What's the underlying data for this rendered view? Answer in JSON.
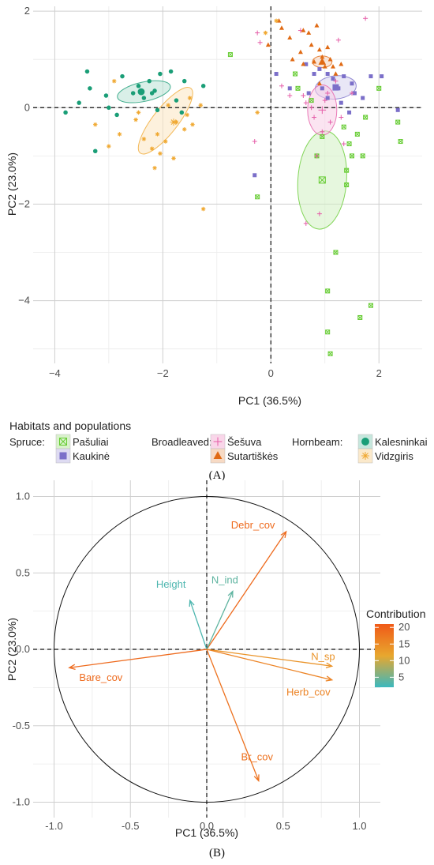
{
  "panel_labels": {
    "a": "(A)",
    "b": "(B)"
  },
  "chart_data": [
    {
      "type": "scatter",
      "xlabel": "PC1 (36.5%)",
      "ylabel": "PC2 (23.0%)",
      "xlim": [
        -4.4,
        2.8
      ],
      "ylim": [
        -5.3,
        2.1
      ],
      "x_ticks": [
        -4,
        -2,
        0,
        2
      ],
      "y_ticks": [
        2,
        0,
        -2,
        -4
      ],
      "grid": true,
      "reference_lines": {
        "x": 0,
        "y": 0,
        "style": "dashed"
      },
      "legend": {
        "title": "Habitats and populations",
        "position": "bottom",
        "groups": [
          {
            "label": "Spruce:",
            "entries": [
              "Pašuliai",
              "Kaukinė"
            ]
          },
          {
            "label": "Broadleaved:",
            "entries": [
              "Šešuva",
              "Sutartiškės"
            ]
          },
          {
            "label": "Hornbeam:",
            "entries": [
              "Kalesninkai",
              "Vidzgiris"
            ]
          }
        ]
      },
      "series": [
        {
          "name": "Pašuliai",
          "color": "#66cc33",
          "marker": "boxed-x",
          "points": [
            [
              -0.75,
              1.1
            ],
            [
              -0.25,
              -1.85
            ],
            [
              0.45,
              0.7
            ],
            [
              0.5,
              0.4
            ],
            [
              0.75,
              0.15
            ],
            [
              0.85,
              -1.0
            ],
            [
              0.95,
              -0.6
            ],
            [
              1.05,
              -3.8
            ],
            [
              1.05,
              -4.65
            ],
            [
              1.1,
              -5.1
            ],
            [
              1.2,
              -3.0
            ],
            [
              1.35,
              -0.4
            ],
            [
              1.45,
              -0.75
            ],
            [
              1.5,
              -1.0
            ],
            [
              1.4,
              -1.3
            ],
            [
              1.4,
              -1.6
            ],
            [
              1.65,
              -4.35
            ],
            [
              1.7,
              -1.0
            ],
            [
              1.75,
              -0.2
            ],
            [
              1.85,
              -4.1
            ],
            [
              2.35,
              -0.3
            ],
            [
              2.4,
              -0.7
            ],
            [
              2.0,
              0.4
            ],
            [
              1.6,
              -0.55
            ]
          ],
          "centroid": [
            0.95,
            -1.5
          ],
          "ellipse": {
            "cx": 0.95,
            "cy": -1.5,
            "rx": 0.45,
            "ry": 1.02,
            "angle": 4
          }
        },
        {
          "name": "Kaukinė",
          "color": "#7b6fc9",
          "marker": "square",
          "points": [
            [
              -0.3,
              -1.4
            ],
            [
              0.1,
              0.7
            ],
            [
              0.35,
              0.4
            ],
            [
              0.65,
              0.9
            ],
            [
              0.8,
              0.7
            ],
            [
              0.9,
              0.8
            ],
            [
              0.95,
              0.4
            ],
            [
              1.05,
              0.7
            ],
            [
              1.15,
              0.6
            ],
            [
              1.25,
              0.4
            ],
            [
              1.35,
              0.65
            ],
            [
              1.5,
              0.5
            ],
            [
              1.55,
              0.3
            ],
            [
              1.7,
              0.2
            ],
            [
              1.85,
              0.65
            ],
            [
              2.05,
              0.65
            ],
            [
              2.35,
              -0.05
            ],
            [
              1.3,
              0.1
            ],
            [
              1.05,
              0.2
            ],
            [
              0.7,
              0.3
            ],
            [
              1.45,
              -0.1
            ]
          ],
          "centroid": [
            1.2,
            0.42
          ],
          "ellipse": {
            "cx": 1.2,
            "cy": 0.42,
            "rx": 0.38,
            "ry": 0.24,
            "angle": -6
          }
        },
        {
          "name": "Šešuva",
          "color": "#e55ca8",
          "marker": "plus",
          "points": [
            [
              -0.25,
              1.55
            ],
            [
              -0.2,
              1.35
            ],
            [
              -0.3,
              -0.7
            ],
            [
              0.2,
              0.45
            ],
            [
              0.35,
              0.25
            ],
            [
              0.6,
              0.25
            ],
            [
              0.65,
              0.1
            ],
            [
              0.75,
              0.0
            ],
            [
              0.8,
              -0.2
            ],
            [
              0.85,
              -1.0
            ],
            [
              0.9,
              -2.2
            ],
            [
              0.65,
              -2.4
            ],
            [
              0.95,
              -0.5
            ],
            [
              1.0,
              0.15
            ],
            [
              1.05,
              0.3
            ],
            [
              1.1,
              -0.3
            ],
            [
              1.2,
              0.55
            ],
            [
              1.25,
              1.4
            ],
            [
              1.35,
              -0.75
            ],
            [
              1.5,
              0.3
            ],
            [
              1.75,
              1.85
            ],
            [
              0.55,
              1.6
            ],
            [
              1.3,
              -0.2
            ]
          ],
          "centroid": [
            0.95,
            -0.05
          ],
          "ellipse": {
            "cx": 0.95,
            "cy": -0.05,
            "rx": 0.27,
            "ry": 0.52,
            "angle": 0
          }
        },
        {
          "name": "Sutartiškės",
          "color": "#e06a14",
          "marker": "triangle",
          "points": [
            [
              -0.05,
              1.3
            ],
            [
              0.15,
              1.8
            ],
            [
              0.2,
              1.65
            ],
            [
              0.35,
              1.45
            ],
            [
              0.55,
              1.15
            ],
            [
              0.6,
              1.6
            ],
            [
              0.7,
              1.55
            ],
            [
              0.75,
              1.3
            ],
            [
              0.85,
              1.7
            ],
            [
              0.9,
              1.2
            ],
            [
              0.95,
              1.05
            ],
            [
              1.05,
              1.25
            ],
            [
              1.1,
              1.0
            ],
            [
              1.15,
              0.85
            ],
            [
              1.2,
              0.7
            ],
            [
              1.3,
              0.9
            ],
            [
              0.9,
              0.5
            ],
            [
              0.8,
              0.95
            ],
            [
              0.6,
              0.9
            ],
            [
              0.4,
              1.0
            ],
            [
              1.0,
              0.85
            ]
          ],
          "centroid": [
            0.95,
            0.95
          ],
          "ellipse": {
            "cx": 0.95,
            "cy": 0.95,
            "rx": 0.18,
            "ry": 0.12,
            "angle": 0
          }
        },
        {
          "name": "Kalesninkai",
          "color": "#1a9e77",
          "marker": "circle",
          "points": [
            [
              -3.8,
              -0.1
            ],
            [
              -3.55,
              0.1
            ],
            [
              -3.4,
              0.75
            ],
            [
              -3.35,
              0.4
            ],
            [
              -3.25,
              -0.9
            ],
            [
              -3.05,
              0.25
            ],
            [
              -2.85,
              -0.15
            ],
            [
              -2.75,
              0.65
            ],
            [
              -2.55,
              0.3
            ],
            [
              -2.45,
              0.45
            ],
            [
              -2.35,
              0.2
            ],
            [
              -2.25,
              0.55
            ],
            [
              -2.15,
              0.35
            ],
            [
              -2.1,
              -0.05
            ],
            [
              -2.05,
              0.7
            ],
            [
              -1.85,
              0.75
            ],
            [
              -1.6,
              0.55
            ],
            [
              -1.65,
              -0.1
            ],
            [
              -1.25,
              0.45
            ],
            [
              -1.75,
              0.15
            ],
            [
              -2.2,
              0.3
            ],
            [
              -3.0,
              0.0
            ]
          ],
          "centroid": [
            -2.4,
            0.33
          ],
          "ellipse": {
            "cx": -2.35,
            "cy": 0.33,
            "rx": 0.5,
            "ry": 0.2,
            "angle": -12
          }
        },
        {
          "name": "Vidzgiris",
          "color": "#f0a830",
          "marker": "asterisk",
          "points": [
            [
              -3.25,
              -0.35
            ],
            [
              -3.0,
              -0.8
            ],
            [
              -2.9,
              0.55
            ],
            [
              -2.8,
              -0.55
            ],
            [
              -2.5,
              -0.25
            ],
            [
              -2.35,
              -0.65
            ],
            [
              -2.2,
              -0.85
            ],
            [
              -2.05,
              -0.95
            ],
            [
              -1.95,
              -0.7
            ],
            [
              -1.8,
              -1.05
            ],
            [
              -1.6,
              -0.45
            ],
            [
              -1.55,
              -0.15
            ],
            [
              -1.5,
              0.2
            ],
            [
              -1.45,
              -0.35
            ],
            [
              -1.75,
              -0.3
            ],
            [
              -2.1,
              -0.55
            ],
            [
              -1.25,
              -2.1
            ],
            [
              -0.25,
              -0.1
            ],
            [
              -0.1,
              1.55
            ],
            [
              0.1,
              1.8
            ],
            [
              -2.15,
              -1.25
            ],
            [
              -1.9,
              0.05
            ],
            [
              -2.45,
              -0.1
            ],
            [
              -1.3,
              0.05
            ]
          ],
          "centroid": [
            -1.8,
            -0.3
          ],
          "ellipse": {
            "cx": -1.95,
            "cy": -0.27,
            "rx": 0.76,
            "ry": 0.26,
            "angle": -52
          }
        }
      ]
    },
    {
      "type": "biplot",
      "xlabel": "PC1 (36.5%)",
      "ylabel": "PC2 (23.0%)",
      "xlim": [
        -1.1,
        1.1
      ],
      "ylim": [
        -1.1,
        1.1
      ],
      "x_ticks": [
        -1.0,
        -0.5,
        0.0,
        0.5,
        1.0
      ],
      "y_ticks": [
        1.0,
        0.5,
        0.0,
        -0.5,
        -1.0
      ],
      "x_tick_labels": [
        "-1.0",
        "-0.5",
        "0.0",
        "0.5",
        "1.0"
      ],
      "y_tick_labels": [
        "1.0",
        "0.5",
        "0.0",
        "-0.5",
        "-1.0"
      ],
      "grid": true,
      "unit_circle": true,
      "legend": {
        "title": "Contribution",
        "position": "right",
        "ticks": [
          20,
          15,
          10,
          5
        ],
        "range": [
          2,
          21
        ]
      },
      "vectors": [
        {
          "name": "Debr_cov",
          "x": 0.52,
          "y": 0.77,
          "contribution": 19
        },
        {
          "name": "N_ind",
          "x": 0.17,
          "y": 0.38,
          "contribution": 4
        },
        {
          "name": "Height",
          "x": -0.11,
          "y": 0.32,
          "contribution": 3
        },
        {
          "name": "Bare_cov",
          "x": -0.9,
          "y": -0.12,
          "contribution": 19
        },
        {
          "name": "N_sp",
          "x": 0.82,
          "y": -0.11,
          "contribution": 14
        },
        {
          "name": "Herb_cov",
          "x": 0.82,
          "y": -0.2,
          "contribution": 16
        },
        {
          "name": "Br_cov",
          "x": 0.34,
          "y": -0.86,
          "contribution": 18
        }
      ]
    }
  ]
}
